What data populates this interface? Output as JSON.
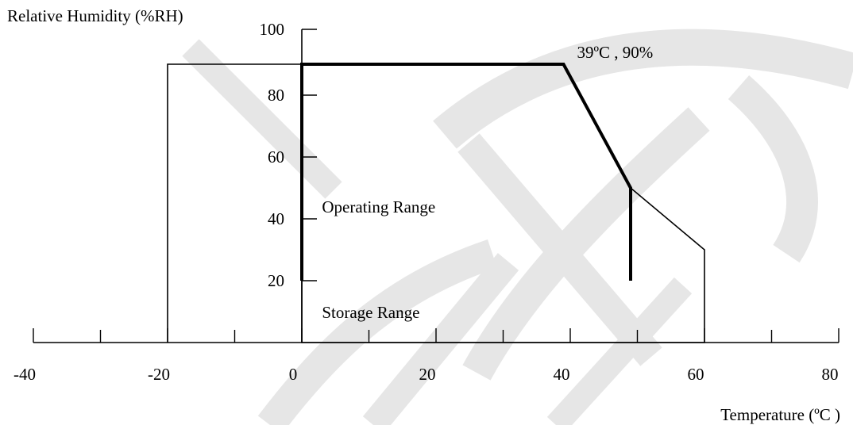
{
  "chart_data": {
    "type": "area",
    "title": "",
    "ylabel": "Relative Humidity (%RH)",
    "xlabel": "Temperature (ºC )",
    "xlim": [
      -40,
      80
    ],
    "ylim": [
      0,
      100
    ],
    "x_ticks": [
      -40,
      -20,
      0,
      20,
      40,
      60,
      80
    ],
    "x_tick_labels": [
      "-40",
      "-20",
      "0",
      "20",
      "40",
      "60",
      "80"
    ],
    "x_minor_ticks": [
      -30,
      -10,
      10,
      30,
      50,
      70
    ],
    "y_ticks": [
      20,
      40,
      60,
      80,
      100
    ],
    "y_tick_labels": [
      "20",
      "40",
      "60",
      "80",
      "100"
    ],
    "series": [
      {
        "name": "Operating Range",
        "style": "thick",
        "points": [
          [
            0,
            20
          ],
          [
            0,
            90
          ],
          [
            39,
            90
          ],
          [
            49,
            50
          ],
          [
            49,
            20
          ]
        ]
      },
      {
        "name": "Storage Range",
        "style": "thin",
        "points": [
          [
            -20,
            0
          ],
          [
            -20,
            90
          ],
          [
            0,
            90
          ],
          [
            0,
            0
          ],
          [
            60,
            0
          ],
          [
            60,
            30
          ],
          [
            49,
            50
          ]
        ]
      }
    ],
    "annotations": [
      {
        "text": "39ºC , 90%",
        "x": 41,
        "y": 92
      }
    ],
    "region_labels": [
      {
        "text": "Operating Range",
        "x": 3,
        "y": 42
      },
      {
        "text": "Storage Range",
        "x": 3,
        "y": 8
      }
    ],
    "grid": false,
    "legend": "none",
    "colors": {
      "line": "#000000",
      "watermark": "#e6e6e6"
    }
  }
}
